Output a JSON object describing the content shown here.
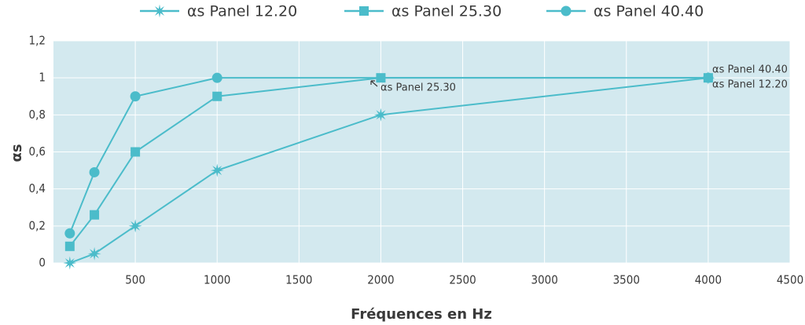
{
  "chart_data": {
    "type": "line",
    "x_label": "Fréquences en Hz",
    "y_label": "αs",
    "xlim": [
      0,
      4500
    ],
    "xticks": [
      500,
      1000,
      1500,
      2000,
      2500,
      3000,
      3500,
      4000,
      4500
    ],
    "ylim": [
      0,
      1.2
    ],
    "yticks": [
      0,
      {
        "value": 0.2,
        "label": "0,2"
      },
      {
        "value": 0.4,
        "label": "0,4"
      },
      {
        "value": 0.6,
        "label": "0,6"
      },
      {
        "value": 0.8,
        "label": "0,8"
      },
      1,
      {
        "value": 1.2,
        "label": "1,2"
      }
    ],
    "grid": true,
    "legend": "top",
    "series": [
      {
        "name": "αs Panel 12.20",
        "color": "#4bbcca",
        "marker": "star",
        "x": [
          100,
          250,
          500,
          1000,
          2000,
          4000
        ],
        "values": [
          0,
          0.05,
          0.2,
          0.5,
          0.8,
          1.0
        ]
      },
      {
        "name": "αs Panel 25.30",
        "color": "#4bbcca",
        "marker": "square",
        "x": [
          100,
          250,
          500,
          1000,
          2000,
          4000
        ],
        "values": [
          0.09,
          0.26,
          0.6,
          0.9,
          1.0,
          1.0
        ]
      },
      {
        "name": "αs Panel 40.40",
        "color": "#4bbcca",
        "marker": "circle",
        "x": [
          100,
          250,
          500,
          1000,
          4000
        ],
        "values": [
          0.16,
          0.49,
          0.9,
          1.0,
          1.0
        ]
      }
    ],
    "annotations": [
      "αs Panel 40.40",
      "αs Panel 12.20",
      "αs Panel 25.30"
    ]
  }
}
